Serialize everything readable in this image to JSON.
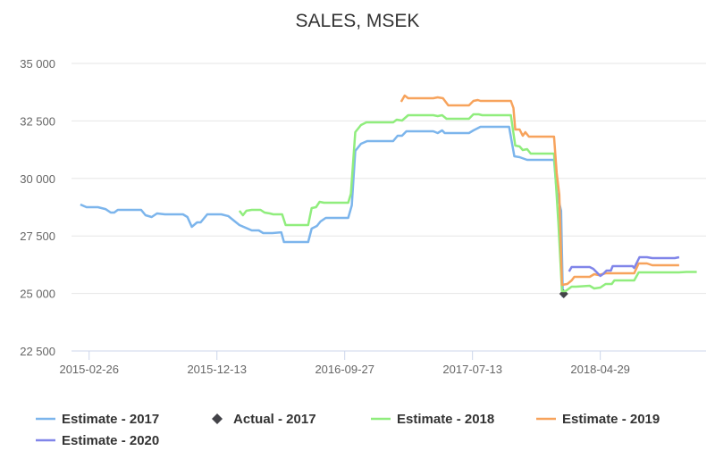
{
  "chart_data": {
    "type": "line",
    "title": "SALES, MSEK",
    "xlabel": "",
    "ylabel": "",
    "x_unit": "days since 2015-02-26",
    "xlim": [
      -40,
      1400
    ],
    "ylim": [
      22500,
      35000
    ],
    "grid": true,
    "legend_position": "bottom",
    "yticks": [
      {
        "value": 22500,
        "label": "22 500"
      },
      {
        "value": 25000,
        "label": "25 000"
      },
      {
        "value": 27500,
        "label": "27 500"
      },
      {
        "value": 30000,
        "label": "30 000"
      },
      {
        "value": 32500,
        "label": "32 500"
      },
      {
        "value": 35000,
        "label": "35 000"
      }
    ],
    "xticks": [
      {
        "value": 0,
        "label": "2015-02-26"
      },
      {
        "value": 290,
        "label": "2015-12-13"
      },
      {
        "value": 580,
        "label": "2016-09-27"
      },
      {
        "value": 870,
        "label": "2017-07-13"
      },
      {
        "value": 1160,
        "label": "2018-04-29"
      }
    ],
    "series": [
      {
        "name": "Estimate - 2017",
        "color": "#7cb5ec",
        "kind": "line",
        "points": [
          [
            -20,
            28866
          ],
          [
            -6,
            28750
          ],
          [
            20,
            28750
          ],
          [
            37,
            28670
          ],
          [
            49,
            28517
          ],
          [
            57,
            28517
          ],
          [
            65,
            28634
          ],
          [
            118,
            28634
          ],
          [
            128,
            28400
          ],
          [
            142,
            28323
          ],
          [
            154,
            28478
          ],
          [
            172,
            28440
          ],
          [
            213,
            28440
          ],
          [
            223,
            28323
          ],
          [
            233,
            27896
          ],
          [
            245,
            28090
          ],
          [
            253,
            28090
          ],
          [
            268,
            28440
          ],
          [
            300,
            28440
          ],
          [
            316,
            28362
          ],
          [
            331,
            28130
          ],
          [
            341,
            27974
          ],
          [
            355,
            27857
          ],
          [
            369,
            27740
          ],
          [
            385,
            27740
          ],
          [
            395,
            27624
          ],
          [
            416,
            27624
          ],
          [
            436,
            27660
          ],
          [
            442,
            27236
          ],
          [
            497,
            27236
          ],
          [
            505,
            27818
          ],
          [
            517,
            27935
          ],
          [
            525,
            28130
          ],
          [
            537,
            28285
          ],
          [
            588,
            28285
          ],
          [
            596,
            28827
          ],
          [
            604,
            31196
          ],
          [
            617,
            31506
          ],
          [
            631,
            31623
          ],
          [
            690,
            31623
          ],
          [
            700,
            31856
          ],
          [
            710,
            31856
          ],
          [
            720,
            32050
          ],
          [
            781,
            32050
          ],
          [
            791,
            31972
          ],
          [
            801,
            32089
          ],
          [
            807,
            31972
          ],
          [
            862,
            31972
          ],
          [
            872,
            32089
          ],
          [
            888,
            32244
          ],
          [
            953,
            32244
          ],
          [
            965,
            30963
          ],
          [
            977,
            30924
          ],
          [
            988,
            30846
          ],
          [
            994,
            30808
          ],
          [
            1055,
            30808
          ],
          [
            1061,
            29410
          ],
          [
            1071,
            28596
          ],
          [
            1075,
            24830
          ]
        ]
      },
      {
        "name": "Actual - 2017",
        "color": "#434348",
        "kind": "marker",
        "points": [
          [
            1077,
            24984
          ]
        ]
      },
      {
        "name": "Estimate - 2018",
        "color": "#90ed7d",
        "kind": "line",
        "points": [
          [
            341,
            28596
          ],
          [
            349,
            28400
          ],
          [
            357,
            28596
          ],
          [
            369,
            28634
          ],
          [
            389,
            28634
          ],
          [
            398,
            28517
          ],
          [
            410,
            28478
          ],
          [
            418,
            28440
          ],
          [
            438,
            28440
          ],
          [
            446,
            27974
          ],
          [
            497,
            27974
          ],
          [
            505,
            28712
          ],
          [
            515,
            28750
          ],
          [
            523,
            28983
          ],
          [
            533,
            28944
          ],
          [
            588,
            28944
          ],
          [
            594,
            29333
          ],
          [
            604,
            32011
          ],
          [
            617,
            32322
          ],
          [
            629,
            32438
          ],
          [
            690,
            32438
          ],
          [
            698,
            32555
          ],
          [
            710,
            32516
          ],
          [
            724,
            32749
          ],
          [
            781,
            32749
          ],
          [
            791,
            32710
          ],
          [
            801,
            32749
          ],
          [
            811,
            32593
          ],
          [
            862,
            32593
          ],
          [
            872,
            32787
          ],
          [
            884,
            32787
          ],
          [
            892,
            32749
          ],
          [
            957,
            32749
          ],
          [
            967,
            31429
          ],
          [
            977,
            31390
          ],
          [
            984,
            31235
          ],
          [
            994,
            31274
          ],
          [
            1002,
            31080
          ],
          [
            1055,
            31080
          ],
          [
            1065,
            28051
          ],
          [
            1073,
            25100
          ],
          [
            1081,
            25100
          ],
          [
            1095,
            25295
          ],
          [
            1105,
            25295
          ],
          [
            1136,
            25334
          ],
          [
            1146,
            25217
          ],
          [
            1160,
            25256
          ],
          [
            1172,
            25411
          ],
          [
            1186,
            25411
          ],
          [
            1192,
            25567
          ],
          [
            1237,
            25567
          ],
          [
            1247,
            25916
          ],
          [
            1339,
            25916
          ],
          [
            1355,
            25935
          ],
          [
            1379,
            25935
          ]
        ]
      },
      {
        "name": "Estimate - 2019",
        "color": "#f7a35c",
        "kind": "line",
        "points": [
          [
            708,
            33331
          ],
          [
            716,
            33602
          ],
          [
            724,
            33486
          ],
          [
            771,
            33486
          ],
          [
            781,
            33486
          ],
          [
            791,
            33525
          ],
          [
            803,
            33486
          ],
          [
            815,
            33175
          ],
          [
            862,
            33175
          ],
          [
            872,
            33370
          ],
          [
            882,
            33408
          ],
          [
            888,
            33370
          ],
          [
            957,
            33370
          ],
          [
            963,
            33059
          ],
          [
            967,
            32127
          ],
          [
            977,
            32127
          ],
          [
            984,
            31856
          ],
          [
            990,
            32011
          ],
          [
            998,
            31817
          ],
          [
            1055,
            31817
          ],
          [
            1061,
            30225
          ],
          [
            1067,
            29293
          ],
          [
            1073,
            25373
          ],
          [
            1085,
            25411
          ],
          [
            1095,
            25567
          ],
          [
            1101,
            25722
          ],
          [
            1136,
            25722
          ],
          [
            1146,
            25838
          ],
          [
            1156,
            25800
          ],
          [
            1172,
            25877
          ],
          [
            1237,
            25877
          ],
          [
            1247,
            26304
          ],
          [
            1266,
            26304
          ],
          [
            1278,
            26227
          ],
          [
            1339,
            26227
          ]
        ]
      },
      {
        "name": "Estimate - 2020",
        "color": "#8085e9",
        "kind": "line",
        "points": [
          [
            1089,
            25955
          ],
          [
            1095,
            26149
          ],
          [
            1136,
            26149
          ],
          [
            1144,
            26071
          ],
          [
            1160,
            25760
          ],
          [
            1166,
            25838
          ],
          [
            1174,
            25993
          ],
          [
            1184,
            25993
          ],
          [
            1188,
            26188
          ],
          [
            1233,
            26188
          ],
          [
            1237,
            26110
          ],
          [
            1249,
            26576
          ],
          [
            1266,
            26576
          ],
          [
            1278,
            26537
          ],
          [
            1329,
            26537
          ],
          [
            1339,
            26576
          ]
        ]
      }
    ]
  }
}
